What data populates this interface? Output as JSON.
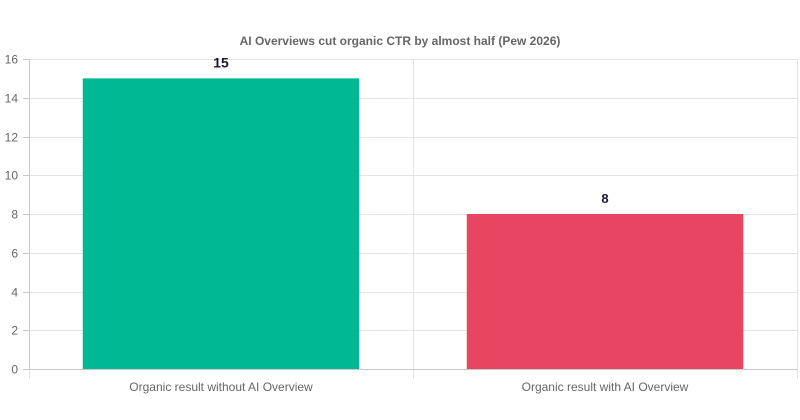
{
  "chart_data": {
    "type": "bar",
    "title": "AI Overviews cut organic CTR by almost half (Pew 2026)",
    "xlabel": "",
    "ylabel": "",
    "categories": [
      "Organic result without AI Overview",
      "Organic result with AI Overview"
    ],
    "values": [
      15,
      8
    ],
    "data_labels": [
      "15",
      "8"
    ],
    "colors": [
      "#00b894",
      "#e84563"
    ],
    "ylim": [
      0,
      16
    ],
    "yticks": [
      0,
      2,
      4,
      6,
      8,
      10,
      12,
      14,
      16
    ],
    "grid": true,
    "legend": "none"
  }
}
